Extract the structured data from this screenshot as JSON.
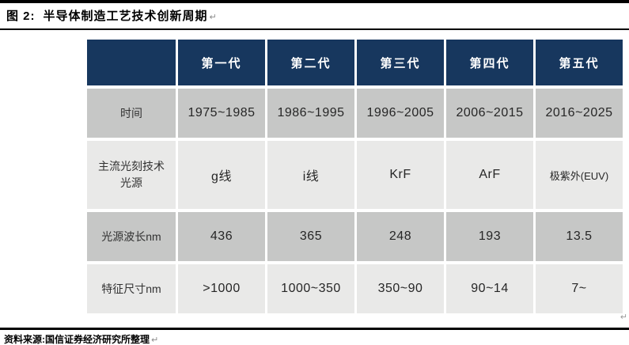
{
  "figure": {
    "title_prefix": "图 2:",
    "title": "半导体制造工艺技术创新周期",
    "source": "资料来源:国信证券经济研究所整理"
  },
  "marks": {
    "return": "↵"
  },
  "colors": {
    "header_bg": "#17375e",
    "header_text": "#ffffff",
    "row_dark": "#c6c7c6",
    "row_light": "#e9e9e8",
    "body_text": "#262626",
    "rule": "#000000"
  },
  "table": {
    "headers": [
      "",
      "第一代",
      "第二代",
      "第三代",
      "第四代",
      "第五代"
    ],
    "rows": [
      {
        "label": "时间",
        "values": [
          "1975~1985",
          "1986~1995",
          "1996~2005",
          "2006~2015",
          "2016~2025"
        ]
      },
      {
        "label": "主流光刻技术光源",
        "values": [
          "g线",
          "i线",
          "KrF",
          "ArF",
          "极紫外(EUV)"
        ]
      },
      {
        "label": "光源波长nm",
        "values": [
          "436",
          "365",
          "248",
          "193",
          "13.5"
        ]
      },
      {
        "label": "特征尺寸nm",
        "values": [
          ">1000",
          "1000~350",
          "350~90",
          "90~14",
          "7~"
        ]
      }
    ]
  }
}
